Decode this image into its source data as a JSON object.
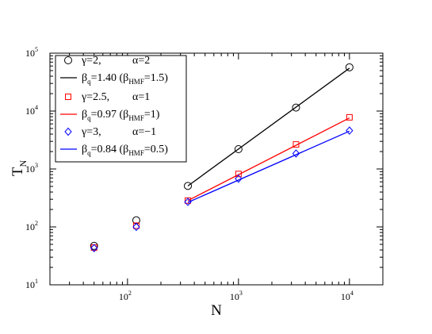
{
  "chart_data": {
    "type": "scatter",
    "title": "",
    "xlabel": {
      "main": "N",
      "sub": ""
    },
    "ylabel": {
      "main": "T",
      "sub": "N"
    },
    "x_scale": "log",
    "y_scale": "log",
    "xlim": [
      20,
      20000
    ],
    "ylim": [
      10,
      100000
    ],
    "x_ticks": [
      {
        "base": "10",
        "exp": "2",
        "value": 100
      },
      {
        "base": "10",
        "exp": "3",
        "value": 1000
      },
      {
        "base": "10",
        "exp": "4",
        "value": 10000
      }
    ],
    "y_ticks": [
      {
        "base": "10",
        "exp": "1",
        "value": 10
      },
      {
        "base": "10",
        "exp": "2",
        "value": 100
      },
      {
        "base": "10",
        "exp": "3",
        "value": 1000
      },
      {
        "base": "10",
        "exp": "4",
        "value": 10000
      },
      {
        "base": "10",
        "exp": "5",
        "value": 100000
      }
    ],
    "grid": false,
    "legend_position": "top-left",
    "series": [
      {
        "legend": {
          "part1": "γ=2,",
          "part2": "α=2"
        },
        "marker": "circle",
        "color": "#000000",
        "points": [
          [
            50,
            47
          ],
          [
            120,
            130
          ],
          [
            350,
            510
          ],
          [
            1000,
            2200
          ],
          [
            3300,
            11500
          ],
          [
            10000,
            57000
          ]
        ]
      },
      {
        "legend": {
          "main": "β",
          "sub": "q",
          "rest": "=1.40 (β",
          "sub2": "HMF",
          "rest2": "=1.5)"
        },
        "line": true,
        "color": "#000000",
        "points": [
          [
            350,
            510
          ],
          [
            10000,
            55000
          ]
        ]
      },
      {
        "legend": {
          "part1": "γ=2.5,",
          "part2": "α=1"
        },
        "marker": "square",
        "color": "#ff0000",
        "points": [
          [
            50,
            44
          ],
          [
            120,
            105
          ],
          [
            350,
            285
          ],
          [
            1000,
            820
          ],
          [
            3300,
            2650
          ],
          [
            10000,
            7800
          ]
        ]
      },
      {
        "legend": {
          "main": "β",
          "sub": "q",
          "rest": "=0.97 (β",
          "sub2": "HMF",
          "rest2": "=1)"
        },
        "line": true,
        "color": "#ff0000",
        "points": [
          [
            350,
            285
          ],
          [
            10000,
            7600
          ]
        ]
      },
      {
        "legend": {
          "part1": "γ=3,",
          "part2": "α=−1"
        },
        "marker": "diamond",
        "color": "#0000ff",
        "points": [
          [
            50,
            43
          ],
          [
            120,
            100
          ],
          [
            350,
            270
          ],
          [
            1000,
            680
          ],
          [
            3300,
            1850
          ],
          [
            10000,
            4600
          ]
        ]
      },
      {
        "legend": {
          "main": "β",
          "sub": "q",
          "rest": "=0.84 (β",
          "sub2": "HMF",
          "rest2": "=0.5)"
        },
        "line": true,
        "color": "#0000ff",
        "points": [
          [
            350,
            265
          ],
          [
            10000,
            4500
          ]
        ]
      }
    ]
  }
}
